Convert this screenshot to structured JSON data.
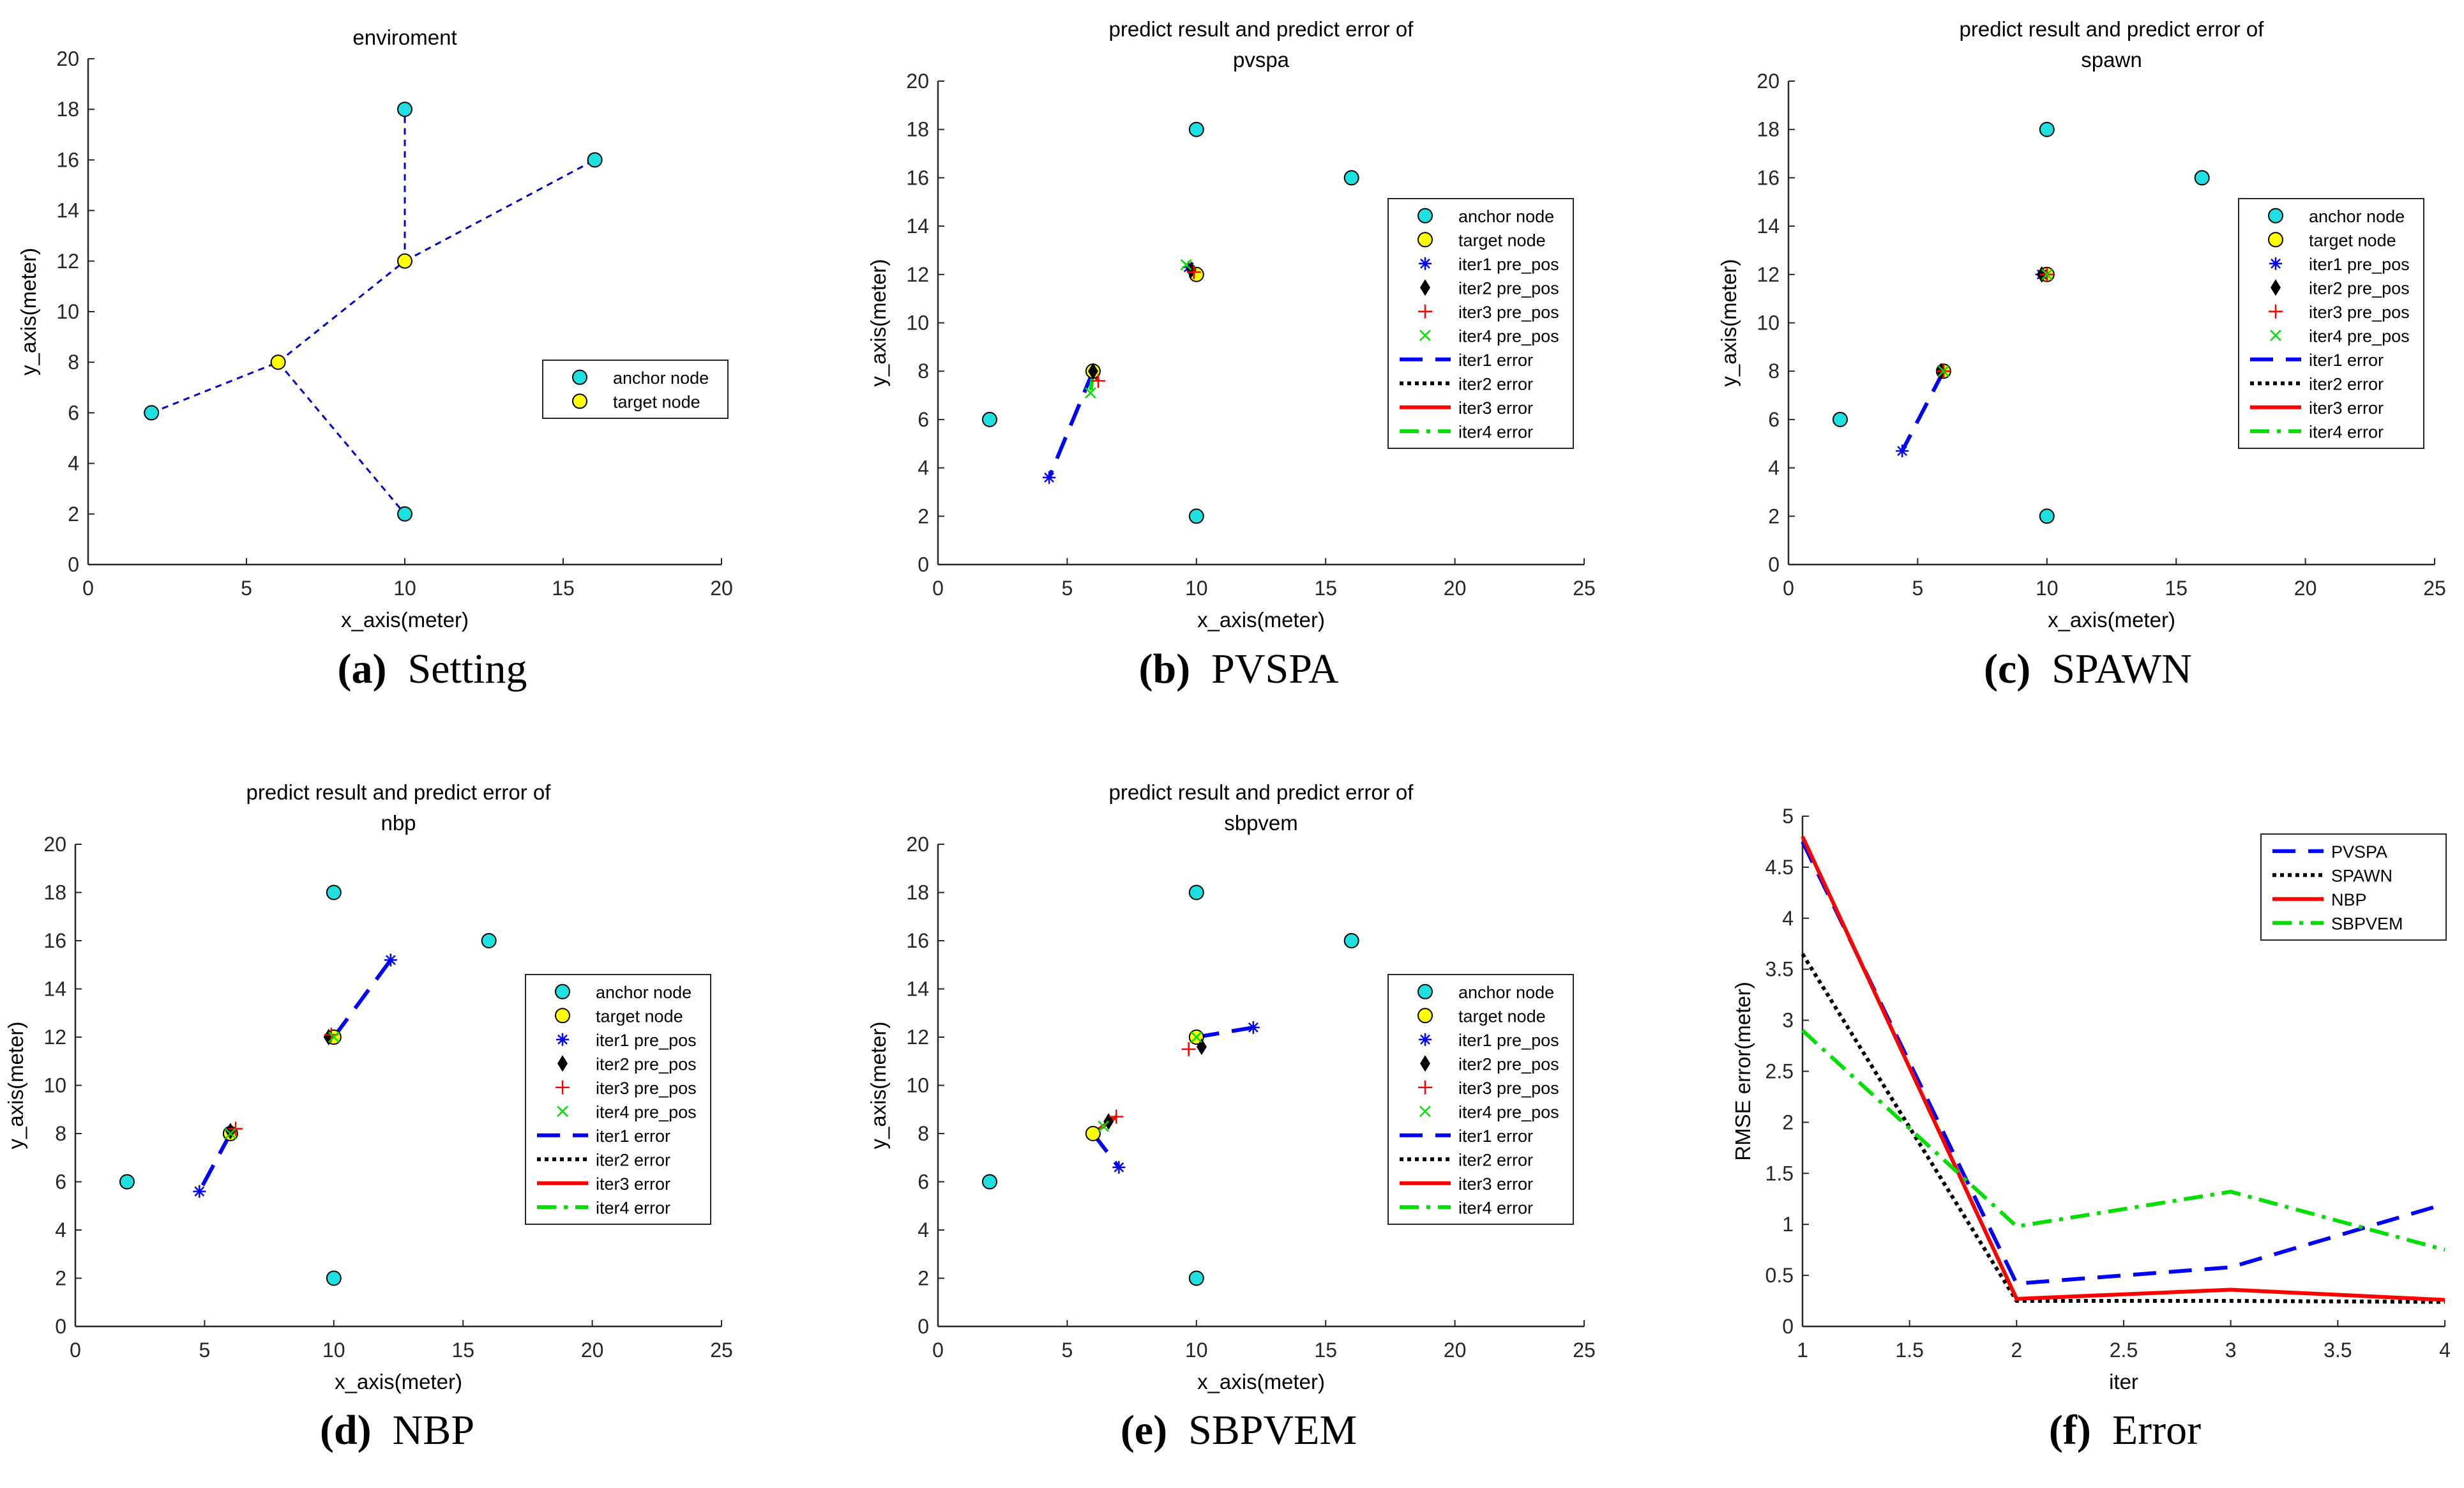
{
  "figure": {
    "colors": {
      "anchor": "#1ee0e0",
      "target": "#ffff00",
      "iter1": "#0000ff",
      "iter2": "#000000",
      "iter3": "#ff0000",
      "iter4": "#00dd00",
      "axis": "#262626",
      "tick": "#262626"
    }
  },
  "panels": [
    {
      "id": "a",
      "caption": {
        "letter": "(a)",
        "text": "Setting"
      },
      "chart_data": {
        "type": "scatter",
        "title": [
          "enviroment"
        ],
        "xlabel": "x_axis(meter)",
        "ylabel": "y_axis(meter)",
        "xlim": [
          0,
          20
        ],
        "ylim": [
          0,
          20
        ],
        "xticks": [
          0,
          5,
          10,
          15,
          20
        ],
        "yticks": [
          0,
          2,
          4,
          6,
          8,
          10,
          12,
          14,
          16,
          18,
          20
        ],
        "legend_position": "middle-right",
        "series": [
          {
            "name": "anchor node",
            "kind": "anchor",
            "points": [
              [
                2,
                6
              ],
              [
                10,
                2
              ],
              [
                10,
                18
              ],
              [
                16,
                16
              ]
            ]
          },
          {
            "name": "target node",
            "kind": "target",
            "points": [
              [
                6,
                8
              ],
              [
                10,
                12
              ]
            ]
          }
        ],
        "connections": [
          [
            [
              2,
              6
            ],
            [
              6,
              8
            ]
          ],
          [
            [
              6,
              8
            ],
            [
              10,
              2
            ]
          ],
          [
            [
              6,
              8
            ],
            [
              10,
              12
            ]
          ],
          [
            [
              10,
              12
            ],
            [
              10,
              18
            ]
          ],
          [
            [
              10,
              12
            ],
            [
              16,
              16
            ]
          ]
        ]
      }
    },
    {
      "id": "b",
      "caption": {
        "letter": "(b)",
        "text": "PVSPA"
      },
      "chart_data": {
        "type": "scatter",
        "title": [
          "predict result and predict error of",
          "pvspa"
        ],
        "xlabel": "x_axis(meter)",
        "ylabel": "y_axis(meter)",
        "xlim": [
          0,
          25
        ],
        "ylim": [
          0,
          20
        ],
        "xticks": [
          0,
          5,
          10,
          15,
          20,
          25
        ],
        "yticks": [
          0,
          2,
          4,
          6,
          8,
          10,
          12,
          14,
          16,
          18,
          20
        ],
        "legend_position": "right",
        "series": [
          {
            "name": "anchor node",
            "kind": "anchor",
            "points": [
              [
                2,
                6
              ],
              [
                10,
                2
              ],
              [
                10,
                18
              ],
              [
                16,
                16
              ]
            ]
          },
          {
            "name": "target node",
            "kind": "target",
            "points": [
              [
                6,
                8
              ],
              [
                10,
                12
              ]
            ]
          },
          {
            "name": "iter1 pre_pos",
            "kind": "iter1",
            "points": [
              [
                4.3,
                3.6
              ],
              [
                9.7,
                12.3
              ]
            ]
          },
          {
            "name": "iter2 pre_pos",
            "kind": "iter2",
            "points": [
              [
                6,
                8
              ],
              [
                9.8,
                12.2
              ]
            ]
          },
          {
            "name": "iter3 pre_pos",
            "kind": "iter3",
            "points": [
              [
                6.2,
                7.6
              ],
              [
                9.9,
                12.1
              ]
            ]
          },
          {
            "name": "iter4 pre_pos",
            "kind": "iter4",
            "points": [
              [
                5.9,
                7.1
              ],
              [
                9.6,
                12.4
              ]
            ]
          }
        ],
        "errors": [
          {
            "name": "iter1 error",
            "kind": "iter1",
            "segments": [
              [
                [
                  6,
                  8
                ],
                [
                  4.3,
                  3.6
                ]
              ],
              [
                [
                  10,
                  12
                ],
                [
                  9.7,
                  12.3
                ]
              ]
            ]
          },
          {
            "name": "iter2 error",
            "kind": "iter2",
            "segments": []
          },
          {
            "name": "iter3 error",
            "kind": "iter3",
            "segments": [
              [
                [
                  6,
                  8
                ],
                [
                  6.2,
                  7.6
                ]
              ]
            ]
          },
          {
            "name": "iter4 error",
            "kind": "iter4",
            "segments": [
              [
                [
                  6,
                  8
                ],
                [
                  5.9,
                  7.1
                ]
              ]
            ]
          }
        ]
      }
    },
    {
      "id": "c",
      "caption": {
        "letter": "(c)",
        "text": "SPAWN"
      },
      "chart_data": {
        "type": "scatter",
        "title": [
          "predict result and predict error of",
          "spawn"
        ],
        "xlabel": "x_axis(meter)",
        "ylabel": "y_axis(meter)",
        "xlim": [
          0,
          25
        ],
        "ylim": [
          0,
          20
        ],
        "xticks": [
          0,
          5,
          10,
          15,
          20,
          25
        ],
        "yticks": [
          0,
          2,
          4,
          6,
          8,
          10,
          12,
          14,
          16,
          18,
          20
        ],
        "legend_position": "right",
        "series": [
          {
            "name": "anchor node",
            "kind": "anchor",
            "points": [
              [
                2,
                6
              ],
              [
                10,
                2
              ],
              [
                10,
                18
              ],
              [
                16,
                16
              ]
            ]
          },
          {
            "name": "target node",
            "kind": "target",
            "points": [
              [
                6,
                8
              ],
              [
                10,
                12
              ]
            ]
          },
          {
            "name": "iter1 pre_pos",
            "kind": "iter1",
            "points": [
              [
                4.4,
                4.7
              ],
              [
                9.8,
                12
              ]
            ]
          },
          {
            "name": "iter2 pre_pos",
            "kind": "iter2",
            "points": [
              [
                5.9,
                8
              ],
              [
                9.8,
                12
              ]
            ]
          },
          {
            "name": "iter3 pre_pos",
            "kind": "iter3",
            "points": [
              [
                6,
                8
              ],
              [
                10,
                12
              ]
            ]
          },
          {
            "name": "iter4 pre_pos",
            "kind": "iter4",
            "points": [
              [
                6,
                8
              ],
              [
                10,
                12
              ]
            ]
          }
        ],
        "errors": [
          {
            "name": "iter1 error",
            "kind": "iter1",
            "segments": [
              [
                [
                  6,
                  8
                ],
                [
                  4.4,
                  4.7
                ]
              ]
            ]
          },
          {
            "name": "iter2 error",
            "kind": "iter2",
            "segments": []
          },
          {
            "name": "iter3 error",
            "kind": "iter3",
            "segments": []
          },
          {
            "name": "iter4 error",
            "kind": "iter4",
            "segments": []
          }
        ]
      }
    },
    {
      "id": "d",
      "caption": {
        "letter": "(d)",
        "text": "NBP"
      },
      "chart_data": {
        "type": "scatter",
        "title": [
          "predict result and predict error of",
          "nbp"
        ],
        "xlabel": "x_axis(meter)",
        "ylabel": "y_axis(meter)",
        "xlim": [
          0,
          25
        ],
        "ylim": [
          0,
          20
        ],
        "xticks": [
          0,
          5,
          10,
          15,
          20,
          25
        ],
        "yticks": [
          0,
          2,
          4,
          6,
          8,
          10,
          12,
          14,
          16,
          18,
          20
        ],
        "legend_position": "right",
        "series": [
          {
            "name": "anchor node",
            "kind": "anchor",
            "points": [
              [
                2,
                6
              ],
              [
                10,
                2
              ],
              [
                10,
                18
              ],
              [
                16,
                16
              ]
            ]
          },
          {
            "name": "target node",
            "kind": "target",
            "points": [
              [
                6,
                8
              ],
              [
                10,
                12
              ]
            ]
          },
          {
            "name": "iter1 pre_pos",
            "kind": "iter1",
            "points": [
              [
                4.8,
                5.6
              ],
              [
                12.2,
                15.2
              ]
            ]
          },
          {
            "name": "iter2 pre_pos",
            "kind": "iter2",
            "points": [
              [
                6,
                8.1
              ],
              [
                9.8,
                12
              ]
            ]
          },
          {
            "name": "iter3 pre_pos",
            "kind": "iter3",
            "points": [
              [
                6.2,
                8.2
              ],
              [
                9.9,
                12.1
              ]
            ]
          },
          {
            "name": "iter4 pre_pos",
            "kind": "iter4",
            "points": [
              [
                6,
                8
              ],
              [
                10,
                12
              ]
            ]
          }
        ],
        "errors": [
          {
            "name": "iter1 error",
            "kind": "iter1",
            "segments": [
              [
                [
                  6,
                  8
                ],
                [
                  4.8,
                  5.6
                ]
              ],
              [
                [
                  10,
                  12
                ],
                [
                  12.2,
                  15.2
                ]
              ]
            ]
          },
          {
            "name": "iter2 error",
            "kind": "iter2",
            "segments": []
          },
          {
            "name": "iter3 error",
            "kind": "iter3",
            "segments": []
          },
          {
            "name": "iter4 error",
            "kind": "iter4",
            "segments": []
          }
        ]
      }
    },
    {
      "id": "e",
      "caption": {
        "letter": "(e)",
        "text": "SBPVEM"
      },
      "chart_data": {
        "type": "scatter",
        "title": [
          "predict result and predict error of",
          "sbpvem"
        ],
        "xlabel": "x_axis(meter)",
        "ylabel": "y_axis(meter)",
        "xlim": [
          0,
          25
        ],
        "ylim": [
          0,
          20
        ],
        "xticks": [
          0,
          5,
          10,
          15,
          20,
          25
        ],
        "yticks": [
          0,
          2,
          4,
          6,
          8,
          10,
          12,
          14,
          16,
          18,
          20
        ],
        "legend_position": "right",
        "series": [
          {
            "name": "anchor node",
            "kind": "anchor",
            "points": [
              [
                2,
                6
              ],
              [
                10,
                2
              ],
              [
                10,
                18
              ],
              [
                16,
                16
              ]
            ]
          },
          {
            "name": "target node",
            "kind": "target",
            "points": [
              [
                6,
                8
              ],
              [
                10,
                12
              ]
            ]
          },
          {
            "name": "iter1 pre_pos",
            "kind": "iter1",
            "points": [
              [
                7,
                6.6
              ],
              [
                12.2,
                12.4
              ]
            ]
          },
          {
            "name": "iter2 pre_pos",
            "kind": "iter2",
            "points": [
              [
                6.6,
                8.5
              ],
              [
                10.2,
                11.6
              ]
            ]
          },
          {
            "name": "iter3 pre_pos",
            "kind": "iter3",
            "points": [
              [
                6.9,
                8.7
              ],
              [
                9.7,
                11.5
              ]
            ]
          },
          {
            "name": "iter4 pre_pos",
            "kind": "iter4",
            "points": [
              [
                6.4,
                8.3
              ],
              [
                10,
                12
              ]
            ]
          }
        ],
        "errors": [
          {
            "name": "iter1 error",
            "kind": "iter1",
            "segments": [
              [
                [
                  6,
                  8
                ],
                [
                  7,
                  6.6
                ]
              ],
              [
                [
                  10,
                  12
                ],
                [
                  12.2,
                  12.4
                ]
              ]
            ]
          },
          {
            "name": "iter2 error",
            "kind": "iter2",
            "segments": []
          },
          {
            "name": "iter3 error",
            "kind": "iter3",
            "segments": [
              [
                [
                  6,
                  8
                ],
                [
                  6.9,
                  8.7
                ]
              ]
            ]
          },
          {
            "name": "iter4 error",
            "kind": "iter4",
            "segments": []
          }
        ]
      }
    },
    {
      "id": "f",
      "caption": {
        "letter": "(f)",
        "text": "Error"
      },
      "chart_data": {
        "type": "line",
        "title": [],
        "xlabel": "iter",
        "ylabel": "RMSE error(meter)",
        "xlim": [
          1,
          4
        ],
        "ylim": [
          0,
          5
        ],
        "xticks": [
          1,
          1.5,
          2,
          2.5,
          3,
          3.5,
          4
        ],
        "yticks": [
          0,
          0.5,
          1,
          1.5,
          2,
          2.5,
          3,
          3.5,
          4,
          4.5,
          5
        ],
        "legend_position": "top-right",
        "x": [
          1,
          2,
          3,
          4
        ],
        "series": [
          {
            "name": "PVSPA",
            "kind": "iter1",
            "values": [
              4.75,
              0.42,
              0.58,
              1.2
            ]
          },
          {
            "name": "SPAWN",
            "kind": "iter2",
            "values": [
              3.65,
              0.25,
              0.25,
              0.24
            ]
          },
          {
            "name": "NBP",
            "kind": "iter3",
            "values": [
              4.8,
              0.27,
              0.36,
              0.26
            ]
          },
          {
            "name": "SBPVEM",
            "kind": "iter4",
            "values": [
              2.9,
              0.98,
              1.32,
              0.75
            ]
          }
        ]
      }
    }
  ]
}
